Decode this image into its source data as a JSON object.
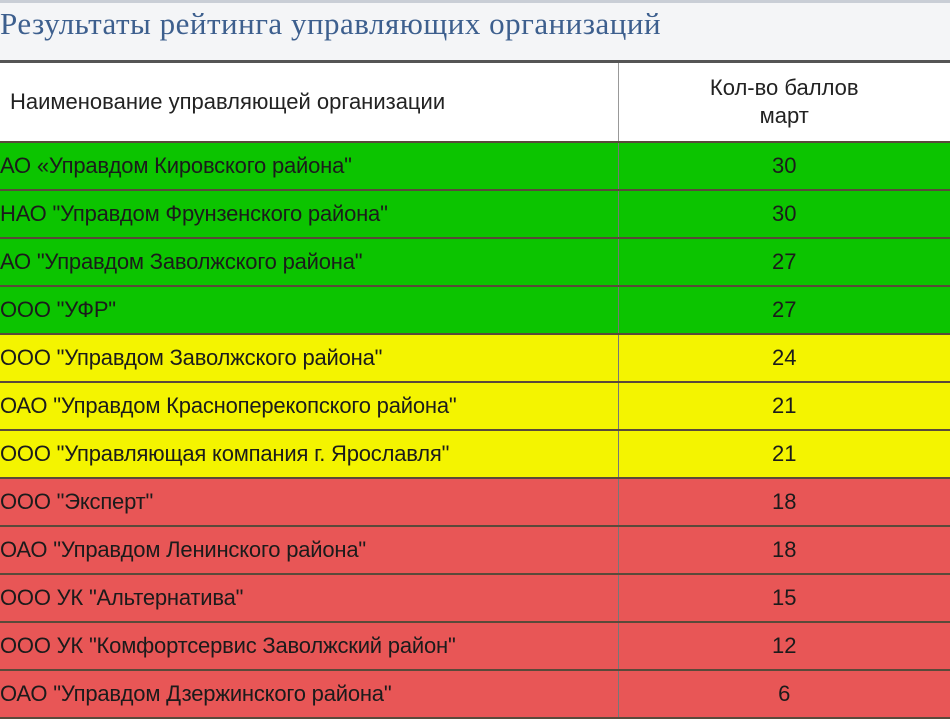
{
  "title": "Результаты рейтинга управляющих организаций",
  "colors": {
    "green": "#0cc400",
    "yellow": "#f4f400",
    "red": "#e85656"
  },
  "table": {
    "headers": {
      "name": "Наименование управляющей организации",
      "score_line1": "Кол-во баллов",
      "score_line2": "март"
    },
    "rows": [
      {
        "name": "АО «Управдом Кировского района\"",
        "score": "30",
        "tier": "green"
      },
      {
        "name": "НАО \"Управдом Фрунзенского района\"",
        "score": "30",
        "tier": "green"
      },
      {
        "name": "АО \"Управдом Заволжского района\"",
        "score": "27",
        "tier": "green"
      },
      {
        "name": "ООО \"УФР\"",
        "score": "27",
        "tier": "green"
      },
      {
        "name": "ООО \"Управдом Заволжского района\"",
        "score": "24",
        "tier": "yellow"
      },
      {
        "name": "ОАО \"Управдом Красноперекопского района\"",
        "score": "21",
        "tier": "yellow"
      },
      {
        "name": "ООО \"Управляющая компания г. Ярославля\"",
        "score": "21",
        "tier": "yellow"
      },
      {
        "name": "ООО \"Эксперт\"",
        "score": "18",
        "tier": "red"
      },
      {
        "name": "ОАО \"Управдом Ленинского района\"",
        "score": "18",
        "tier": "red"
      },
      {
        "name": "ООО УК \"Альтернатива\"",
        "score": "15",
        "tier": "red"
      },
      {
        "name": "ООО  УК \"Комфортсервис Заволжский район\"",
        "score": "12",
        "tier": "red"
      },
      {
        "name": "ОАО \"Управдом Дзержинского района\"",
        "score": "6",
        "tier": "red"
      }
    ]
  }
}
